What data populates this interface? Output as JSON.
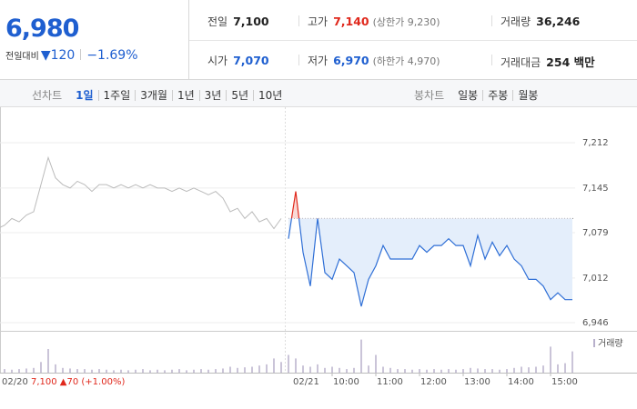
{
  "header": {
    "price": "6,980",
    "change_label": "전일대비",
    "change": "▼120",
    "change_pct": "−1.69%",
    "stats": [
      [
        {
          "label": "전일",
          "value": "7,100",
          "color": "#222222"
        },
        {
          "label": "고가",
          "value": "7,140",
          "color": "#e0281c",
          "note": "(상한가 9,230)"
        },
        {
          "label": "거래량",
          "value": "36,246",
          "color": "#222222"
        }
      ],
      [
        {
          "label": "시가",
          "value": "7,070",
          "color": "#1f5fd0"
        },
        {
          "label": "저가",
          "value": "6,970",
          "color": "#1f5fd0",
          "note": "(하한가 4,970)"
        },
        {
          "label": "거래대금",
          "value": "254 백만",
          "color": "#222222"
        }
      ]
    ]
  },
  "tabs": {
    "line_label": "선차트",
    "line": [
      "1일",
      "1주일",
      "3개월",
      "1년",
      "3년",
      "5년",
      "10년"
    ],
    "active": 0,
    "candle_label": "봉차트",
    "candle": [
      "일봉",
      "주봉",
      "월봉"
    ]
  },
  "chart_data": {
    "type": "line",
    "x": [
      "09:00",
      "09:10",
      "09:20",
      "09:30",
      "09:40",
      "09:50",
      "10:00",
      "10:10",
      "10:20",
      "10:30",
      "10:40",
      "10:50",
      "11:00",
      "11:10",
      "11:20",
      "11:30",
      "11:40",
      "11:50",
      "12:00",
      "12:10",
      "12:20",
      "12:30",
      "12:40",
      "12:50",
      "13:00",
      "13:10",
      "13:20",
      "13:30",
      "13:40",
      "13:50",
      "14:00",
      "14:10",
      "14:20",
      "14:30",
      "14:40",
      "14:50",
      "15:00",
      "15:10",
      "15:20",
      "15:30"
    ],
    "series": [
      {
        "date": "02/20",
        "color": "#bbbbbb",
        "summary": "7,100 ▲70 (+1.00%)",
        "values": [
          7085,
          7090,
          7100,
          7095,
          7105,
          7110,
          7150,
          7190,
          7160,
          7150,
          7145,
          7155,
          7150,
          7140,
          7150,
          7150,
          7145,
          7150,
          7145,
          7150,
          7145,
          7150,
          7145,
          7145,
          7140,
          7145,
          7140,
          7145,
          7140,
          7135,
          7140,
          7130,
          7110,
          7115,
          7100,
          7110,
          7095,
          7100,
          7085,
          7100
        ],
        "volume": [
          800,
          300,
          250,
          300,
          350,
          400,
          900,
          2000,
          700,
          400,
          350,
          300,
          300,
          250,
          300,
          250,
          200,
          250,
          200,
          250,
          300,
          200,
          250,
          200,
          250,
          300,
          200,
          250,
          300,
          250,
          300,
          350,
          500,
          400,
          450,
          500,
          600,
          700,
          1200,
          900
        ]
      },
      {
        "date": "02/21",
        "color": "#2f6fd6",
        "values": [
          7070,
          7140,
          7050,
          7000,
          7100,
          7020,
          7010,
          7040,
          7030,
          7020,
          6970,
          7010,
          7030,
          7060,
          7040,
          7040,
          7040,
          7040,
          7060,
          7050,
          7060,
          7060,
          7070,
          7060,
          7060,
          7030,
          7075,
          7040,
          7065,
          7045,
          7060,
          7040,
          7030,
          7010,
          7010,
          7000,
          6980,
          6990,
          6980,
          6980
        ],
        "volume": [
          1500,
          1200,
          600,
          500,
          700,
          400,
          500,
          400,
          300,
          400,
          2800,
          600,
          1500,
          500,
          400,
          300,
          300,
          250,
          300,
          250,
          300,
          250,
          300,
          250,
          300,
          400,
          350,
          300,
          300,
          250,
          300,
          400,
          500,
          450,
          500,
          600,
          2200,
          700,
          800,
          1800
        ]
      }
    ],
    "reference": 7100,
    "up_color": "#e0281c",
    "down_fill": "#e4eefb",
    "up_fill": "#f9d9d6",
    "ylim": [
      6946,
      7212
    ],
    "yticks": [
      {
        "value": 7212,
        "label": "7,212"
      },
      {
        "value": 7145,
        "label": "7,145"
      },
      {
        "value": 7079,
        "label": "7,079"
      },
      {
        "value": 7012,
        "label": "7,012"
      },
      {
        "value": 6946,
        "label": "6,946"
      }
    ],
    "volume_label": "거래량",
    "volume_color": "#b8b0cc",
    "vlim": [
      0,
      3000
    ],
    "xticks": [
      "10:00",
      "11:00",
      "12:00",
      "13:00",
      "14:00",
      "15:00"
    ]
  }
}
